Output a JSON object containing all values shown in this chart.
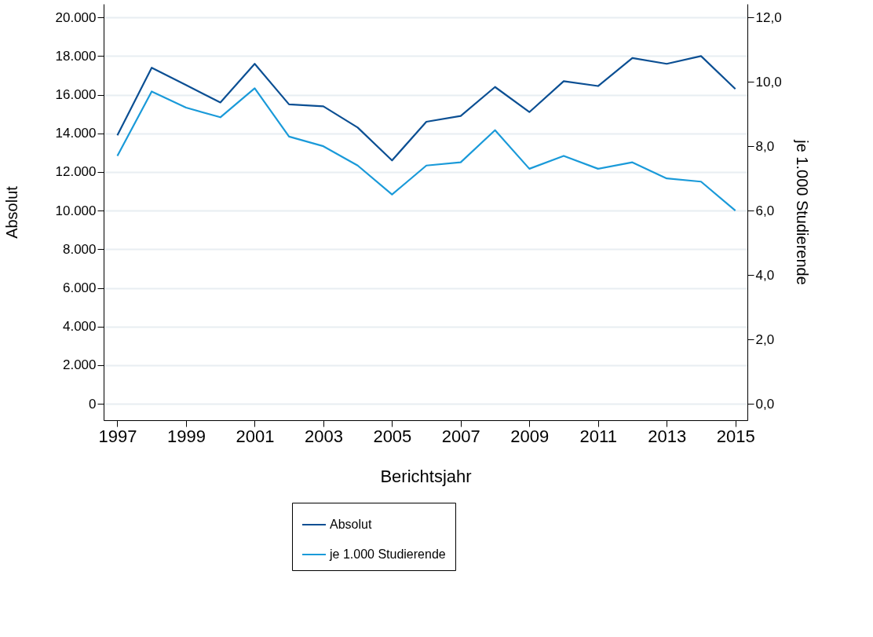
{
  "chart_data": {
    "type": "line",
    "xlabel": "Berichtsjahr",
    "ylabel": "Absolut",
    "y2label": "je 1.000 Studierende",
    "x": [
      1997,
      1998,
      1999,
      2000,
      2001,
      2002,
      2003,
      2004,
      2005,
      2006,
      2007,
      2008,
      2009,
      2010,
      2011,
      2012,
      2013,
      2014,
      2015
    ],
    "series": [
      {
        "name": "Absolut",
        "color": "#0b4f93",
        "values": [
          13900,
          17400,
          16500,
          15600,
          17600,
          15500,
          15400,
          14300,
          12600,
          14600,
          14900,
          16400,
          15100,
          16700,
          16450,
          17900,
          17600,
          18000,
          16300
        ]
      },
      {
        "name": "je 1.000 Studierende",
        "color": "#1a9ad9",
        "axis": "y2",
        "values": [
          7.7,
          9.7,
          9.2,
          8.9,
          9.8,
          8.3,
          8.0,
          7.4,
          6.5,
          7.4,
          7.5,
          8.5,
          7.3,
          7.7,
          7.3,
          7.5,
          7.0,
          6.9,
          6.0
        ]
      }
    ],
    "xlim": [
      1996.6,
      2015.35
    ],
    "xticks": [
      1997,
      1999,
      2001,
      2003,
      2005,
      2007,
      2009,
      2011,
      2013,
      2015
    ],
    "ylim": [
      -850,
      20700
    ],
    "yticks": [
      {
        "value": 0,
        "label": "0"
      },
      {
        "value": 2000,
        "label": "2.000"
      },
      {
        "value": 4000,
        "label": "4.000"
      },
      {
        "value": 6000,
        "label": "6.000"
      },
      {
        "value": 8000,
        "label": "8.000"
      },
      {
        "value": 10000,
        "label": "10.000"
      },
      {
        "value": 12000,
        "label": "12.000"
      },
      {
        "value": 14000,
        "label": "14.000"
      },
      {
        "value": 16000,
        "label": "16.000"
      },
      {
        "value": 18000,
        "label": "18.000"
      },
      {
        "value": 20000,
        "label": "20.000"
      }
    ],
    "y2lim": [
      -0.51,
      12.42
    ],
    "y2ticks": [
      {
        "value": 0,
        "label": "0,0"
      },
      {
        "value": 2,
        "label": "2,0"
      },
      {
        "value": 4,
        "label": "4,0"
      },
      {
        "value": 6,
        "label": "6,0"
      },
      {
        "value": 8,
        "label": "8,0"
      },
      {
        "value": 10,
        "label": "10,0"
      },
      {
        "value": 12,
        "label": "12,0"
      }
    ],
    "grid": "y",
    "legend": "bottom",
    "marker": "none",
    "line_style": "solid"
  }
}
